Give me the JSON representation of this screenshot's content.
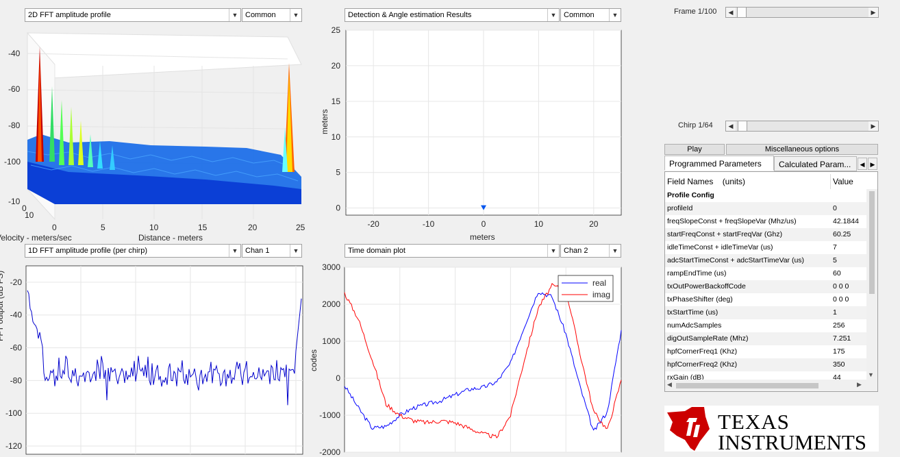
{
  "panels": {
    "top_left": {
      "plot_select": "2D FFT amplitude profile",
      "scale_select": "Common"
    },
    "top_right": {
      "plot_select": "Detection & Angle estimation Results",
      "scale_select": "Common"
    },
    "bottom_left": {
      "plot_select": "1D FFT amplitude profile (per chirp)",
      "chan_select": "Chan 1"
    },
    "bottom_right": {
      "plot_select": "Time domain plot",
      "chan_select": "Chan 2"
    }
  },
  "controls": {
    "frame_label": "Frame 1/100",
    "frame_value": 0.01,
    "chirp_label": "Chirp 1/64",
    "chirp_value": 0.016,
    "play_button": "Play",
    "misc_button": "Miscellaneous options"
  },
  "tabs": [
    "Programmed Parameters",
    "Calculated Param..."
  ],
  "param_table": {
    "headers": [
      "Field Names    (units)",
      "Value"
    ],
    "section": "Profile Config",
    "rows": [
      [
        "profileId",
        "0"
      ],
      [
        "freqSlopeConst + freqSlopeVar (Mhz/us)",
        "42.1844"
      ],
      [
        "startFreqConst + startFreqVar (Ghz)",
        "60.25"
      ],
      [
        "idleTimeConst + idleTimeVar (us)",
        "7"
      ],
      [
        "adcStartTimeConst + adcStartTimeVar (us)",
        "5"
      ],
      [
        "rampEndTime (us)",
        "60"
      ],
      [
        "txOutPowerBackoffCode",
        "0 0 0"
      ],
      [
        "txPhaseShifter (deg)",
        "0 0 0"
      ],
      [
        "txStartTime (us)",
        "1"
      ],
      [
        "numAdcSamples",
        "256"
      ],
      [
        "digOutSampleRate (Mhz)",
        "7.251"
      ],
      [
        "hpfCornerFreq1 (Khz)",
        "175"
      ],
      [
        "hpfCornerFreq2 (Khz)",
        "350"
      ],
      [
        "rxGain (dB)",
        "44"
      ]
    ]
  },
  "logo": {
    "line1": "TEXAS",
    "line2": "INSTRUMENTS",
    "color": "#cc0000"
  },
  "colors": {
    "real": "#0000ff",
    "imag": "#ff0000",
    "fft": "#0000cc"
  },
  "chart_data": [
    {
      "type": "surface",
      "ylabel_3d": "Velocity - meters/sec",
      "xlabel": "Distance - meters",
      "z_ticks": [
        -40,
        -60,
        -80,
        -100
      ],
      "x_ticks": [
        0,
        5,
        10,
        15,
        20,
        25
      ],
      "y_ticks": [
        -10,
        0,
        10
      ]
    },
    {
      "type": "scatter",
      "xlabel": "meters",
      "ylabel": "meters",
      "xlim": [
        -25,
        25
      ],
      "ylim": [
        -1,
        25
      ],
      "x_ticks": [
        -20,
        -10,
        0,
        10,
        20
      ],
      "y_ticks": [
        0,
        5,
        10,
        15,
        20,
        25
      ],
      "points": [
        {
          "x": 0,
          "y": 0
        }
      ]
    },
    {
      "type": "line",
      "ylabel_partial": "FFT output (dB FS)",
      "ylim": [
        -125,
        -10
      ],
      "y_ticks": [
        -20,
        -40,
        -60,
        -80,
        -100,
        -120
      ]
    },
    {
      "type": "line",
      "ylabel": "codes",
      "ylim": [
        -2000,
        3000
      ],
      "y_ticks": [
        3000,
        2000,
        1000,
        0,
        -1000,
        -2000
      ],
      "series": [
        {
          "name": "real",
          "x": [
            0,
            5,
            10,
            15,
            20,
            25,
            30,
            35,
            40,
            45,
            50,
            55,
            60,
            65,
            70,
            75,
            80,
            85,
            90,
            95,
            100
          ],
          "y": [
            -200,
            -800,
            -1350,
            -1300,
            -1000,
            -800,
            -700,
            -600,
            -450,
            -300,
            -250,
            -100,
            400,
            1400,
            2350,
            2200,
            1200,
            -200,
            -1450,
            -900,
            1300
          ]
        },
        {
          "name": "imag",
          "x": [
            0,
            5,
            10,
            15,
            20,
            25,
            30,
            35,
            40,
            45,
            50,
            55,
            60,
            65,
            70,
            75,
            80,
            85,
            90,
            95,
            100
          ],
          "y": [
            2300,
            1600,
            500,
            -700,
            -1000,
            -1150,
            -1200,
            -1150,
            -1200,
            -1350,
            -1500,
            -1600,
            -1000,
            500,
            1900,
            2500,
            2400,
            700,
            -900,
            -1400,
            -50
          ]
        }
      ]
    }
  ]
}
